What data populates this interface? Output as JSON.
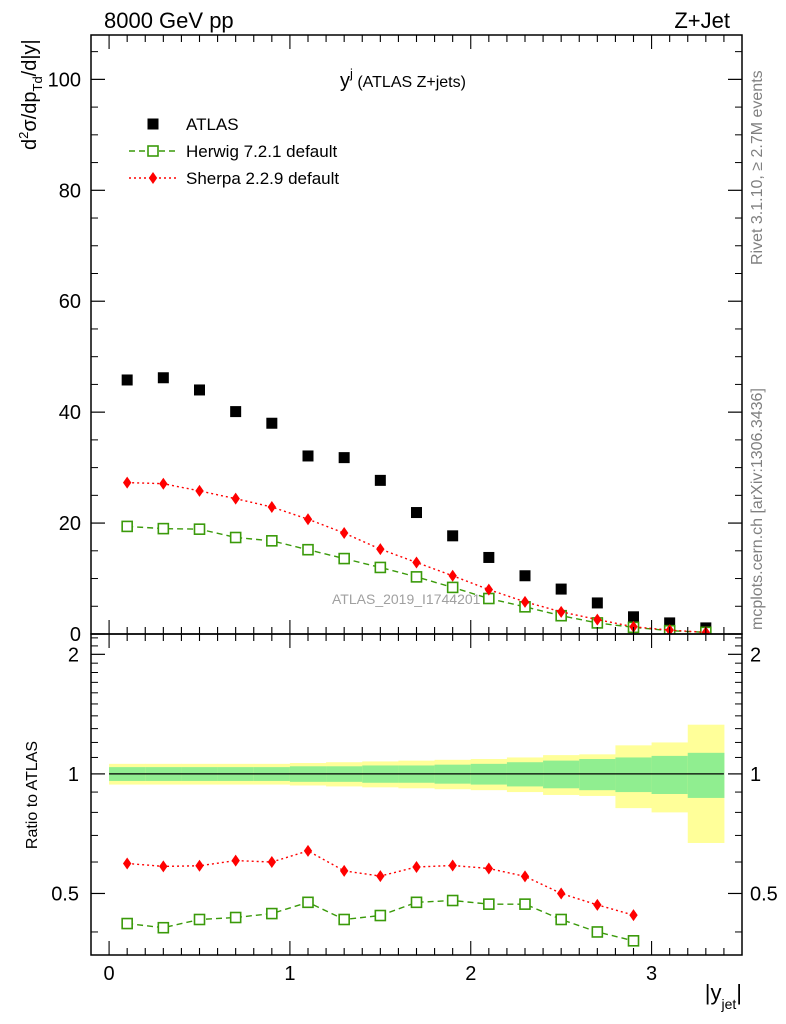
{
  "header": {
    "left": "8000 GeV pp",
    "right": "Z+Jet"
  },
  "side_labels": {
    "rivet": "Rivet 3.1.10, ≥ 2.7M events",
    "mcplots": "mcplots.cern.ch [arXiv:1306.3436]"
  },
  "watermark": "ATLAS_2019_I1744201",
  "chart_data": [
    {
      "type": "scatter",
      "panel": "main",
      "title_main": "y",
      "title_sup": "j",
      "title_rest": " (ATLAS Z+jets)",
      "ylabel": {
        "d": "d",
        "sup2": "2",
        "sigma": "σ/dp",
        "sub": "Td",
        "rest": "/d|y|"
      },
      "xlim": [
        -0.1,
        3.5
      ],
      "ylim": [
        0,
        108
      ],
      "yticks": [
        0,
        20,
        40,
        60,
        80,
        100
      ],
      "ytick_labels": [
        "0",
        "20",
        "40",
        "60",
        "80",
        "100"
      ],
      "grid": false,
      "legend_position": "top-left",
      "series": [
        {
          "name": "ATLAS",
          "color": "#000000",
          "marker": "square-filled",
          "x": [
            0.1,
            0.3,
            0.5,
            0.7,
            0.9,
            1.1,
            1.3,
            1.5,
            1.7,
            1.9,
            2.1,
            2.3,
            2.5,
            2.7,
            2.9,
            3.1,
            3.3
          ],
          "y": [
            45.8,
            46.2,
            44.0,
            40.1,
            38.0,
            32.1,
            31.8,
            27.7,
            21.9,
            17.7,
            13.8,
            10.5,
            8.1,
            5.6,
            3.1,
            2.0,
            1.1
          ]
        },
        {
          "name": "Herwig 7.2.1 default",
          "color": "#3a9a0a",
          "marker": "square-open",
          "line": "dashed",
          "x": [
            0.1,
            0.3,
            0.5,
            0.7,
            0.9,
            1.1,
            1.3,
            1.5,
            1.7,
            1.9,
            2.1,
            2.3,
            2.5,
            2.7,
            2.9,
            3.1,
            3.3
          ],
          "y": [
            19.4,
            19.0,
            18.9,
            17.4,
            16.8,
            15.2,
            13.6,
            12.0,
            10.3,
            8.4,
            6.4,
            4.9,
            3.3,
            2.0,
            1.2,
            0.6,
            0.3
          ]
        },
        {
          "name": "Sherpa 2.2.9 default",
          "color": "#ff0000",
          "marker": "diamond-filled",
          "line": "dotted",
          "x": [
            0.1,
            0.3,
            0.5,
            0.7,
            0.9,
            1.1,
            1.3,
            1.5,
            1.7,
            1.9,
            2.1,
            2.3,
            2.5,
            2.7,
            2.9,
            3.1,
            3.3
          ],
          "y": [
            27.3,
            27.1,
            25.8,
            24.4,
            22.9,
            20.7,
            18.2,
            15.3,
            12.9,
            10.5,
            8.0,
            5.8,
            4.0,
            2.6,
            1.3,
            0.7,
            0.3
          ]
        }
      ]
    },
    {
      "type": "scatter",
      "panel": "ratio",
      "ylabel": "Ratio to ATLAS",
      "xlabel_main": "|y",
      "xlabel_sub": "jet",
      "xlabel_end": "|",
      "xlim": [
        -0.1,
        3.5
      ],
      "ylim": [
        0.35,
        2.25
      ],
      "xticks": [
        0,
        1,
        2,
        3
      ],
      "xtick_labels": [
        "0",
        "1",
        "2",
        "3"
      ],
      "yticks": [
        0.5,
        1,
        2
      ],
      "ytick_labels": [
        "0.5",
        "1",
        "2"
      ],
      "grid": false,
      "reference_line": 1.0,
      "bands": {
        "edges": [
          0.0,
          0.2,
          0.4,
          0.6,
          0.8,
          1.0,
          1.2,
          1.4,
          1.6,
          1.8,
          2.0,
          2.2,
          2.4,
          2.6,
          2.8,
          3.0,
          3.2,
          3.4
        ],
        "stat_color": "#90ee90",
        "total_color": "#ffff99",
        "stat_half": [
          0.04,
          0.04,
          0.04,
          0.04,
          0.04,
          0.045,
          0.045,
          0.05,
          0.05,
          0.055,
          0.06,
          0.07,
          0.08,
          0.09,
          0.1,
          0.11,
          0.13
        ],
        "total_half": [
          0.06,
          0.06,
          0.06,
          0.06,
          0.06,
          0.065,
          0.07,
          0.075,
          0.08,
          0.085,
          0.09,
          0.1,
          0.115,
          0.12,
          0.18,
          0.2,
          0.33
        ]
      },
      "series": [
        {
          "name": "Herwig 7.2.1 default",
          "color": "#3a9a0a",
          "marker": "square-open",
          "line": "dashed",
          "x": [
            0.1,
            0.3,
            0.5,
            0.7,
            0.9,
            1.1,
            1.3,
            1.5,
            1.7,
            1.9,
            2.1,
            2.3,
            2.5,
            2.7,
            2.9
          ],
          "y": [
            0.42,
            0.41,
            0.43,
            0.435,
            0.445,
            0.475,
            0.43,
            0.44,
            0.475,
            0.48,
            0.47,
            0.47,
            0.43,
            0.4,
            0.38
          ]
        },
        {
          "name": "Sherpa 2.2.9 default",
          "color": "#ff0000",
          "marker": "diamond-filled",
          "line": "dotted",
          "x": [
            0.1,
            0.3,
            0.5,
            0.7,
            0.9,
            1.1,
            1.3,
            1.5,
            1.7,
            1.9,
            2.1,
            2.3,
            2.5,
            2.7,
            2.9
          ],
          "y": [
            0.595,
            0.585,
            0.587,
            0.605,
            0.6,
            0.64,
            0.57,
            0.553,
            0.583,
            0.588,
            0.578,
            0.552,
            0.5,
            0.468,
            0.441
          ]
        }
      ]
    }
  ]
}
